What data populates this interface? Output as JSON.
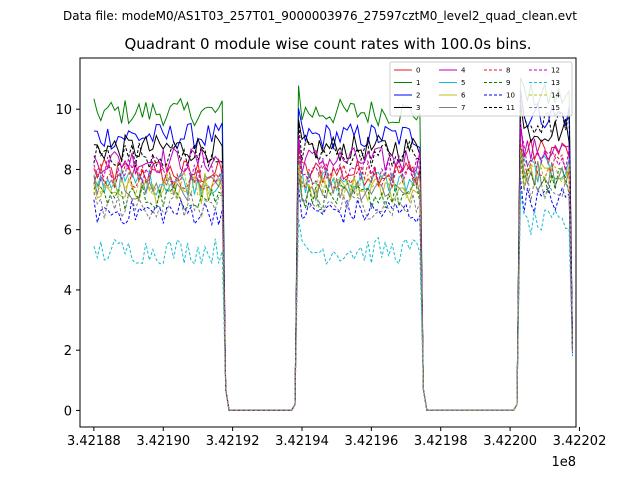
{
  "chart_data": {
    "type": "line",
    "suptitle": "Data file: modeM0/AS1T03_257T01_9000003976_27597cztM0_level2_quad_clean.evt",
    "title": "Quadrant 0 module wise count rates with 100.0s bins.",
    "xlabel": "",
    "ylabel": "",
    "x_offset_label": "1e8",
    "x_ticks": [
      342188000,
      342190000,
      342192000,
      342194000,
      342196000,
      342198000,
      342200000,
      342202000
    ],
    "x_tick_labels": [
      "3.42188",
      "3.42190",
      "3.42192",
      "3.42194",
      "3.42196",
      "3.42198",
      "3.42200",
      "3.42202"
    ],
    "y_ticks": [
      0,
      2,
      4,
      6,
      8,
      10
    ],
    "y_tick_labels": [
      "0",
      "2",
      "4",
      "6",
      "8",
      "10"
    ],
    "xlim": [
      342187600,
      342201900
    ],
    "ylim": [
      -0.55,
      11.7
    ],
    "segments": [
      {
        "start": 342188000,
        "end": 342191700,
        "drop_to": 342191800,
        "zero_end": 342193800
      },
      {
        "start": 342193800,
        "end": 342197400,
        "drop_to": 342197500,
        "zero_end": 342200200
      },
      {
        "start": 342200200,
        "end": 342201800,
        "drop_to": null,
        "zero_end": null
      }
    ],
    "bin_size_s": 100,
    "legend": {
      "placement": "top-right",
      "columns": 4
    },
    "series": [
      {
        "name": "0",
        "color": "#e41a1c",
        "dash": false,
        "level": 7.9,
        "seg3_level": 8.6,
        "end_value": 2.1
      },
      {
        "name": "1",
        "color": "#008000",
        "dash": false,
        "level": 9.9,
        "seg3_level": 10.4,
        "end_value": 2.2
      },
      {
        "name": "2",
        "color": "#0000ff",
        "dash": false,
        "level": 9.1,
        "seg3_level": 9.8,
        "end_value": 2.3
      },
      {
        "name": "3",
        "color": "#000000",
        "dash": false,
        "level": 8.7,
        "seg3_level": 9.3,
        "end_value": 2.2
      },
      {
        "name": "4",
        "color": "#bf00bf",
        "dash": false,
        "level": 8.3,
        "seg3_level": 8.6,
        "end_value": 2.1
      },
      {
        "name": "5",
        "color": "#17becf",
        "dash": false,
        "level": 7.6,
        "seg3_level": 8.0,
        "end_value": 2.0
      },
      {
        "name": "6",
        "color": "#bcbd22",
        "dash": false,
        "level": 7.3,
        "seg3_level": 7.8,
        "end_value": 2.0
      },
      {
        "name": "7",
        "color": "#7f7f7f",
        "dash": false,
        "level": 7.4,
        "seg3_level": 7.9,
        "end_value": 2.0
      },
      {
        "name": "8",
        "color": "#e41a1c",
        "dash": true,
        "level": 7.8,
        "seg3_level": 8.1,
        "end_value": 2.0
      },
      {
        "name": "9",
        "color": "#008000",
        "dash": true,
        "level": 7.1,
        "seg3_level": 7.6,
        "end_value": 2.0
      },
      {
        "name": "10",
        "color": "#0000ff",
        "dash": true,
        "level": 6.6,
        "seg3_level": 7.0,
        "end_value": 1.9
      },
      {
        "name": "11",
        "color": "#000000",
        "dash": true,
        "level": 8.5,
        "seg3_level": 9.5,
        "end_value": 2.1
      },
      {
        "name": "12",
        "color": "#bf00bf",
        "dash": true,
        "level": 8.0,
        "seg3_level": 8.4,
        "end_value": 2.0
      },
      {
        "name": "13",
        "color": "#17becf",
        "dash": true,
        "level": 5.3,
        "seg3_level": 6.2,
        "end_value": 1.8
      },
      {
        "name": "14",
        "color": "#bcbd22",
        "dash": true,
        "level": 7.5,
        "seg3_level": 7.8,
        "end_value": 2.0
      },
      {
        "name": "15",
        "color": "#7f7f7f",
        "dash": true,
        "level": 6.8,
        "seg3_level": 7.4,
        "end_value": 1.9
      }
    ]
  }
}
